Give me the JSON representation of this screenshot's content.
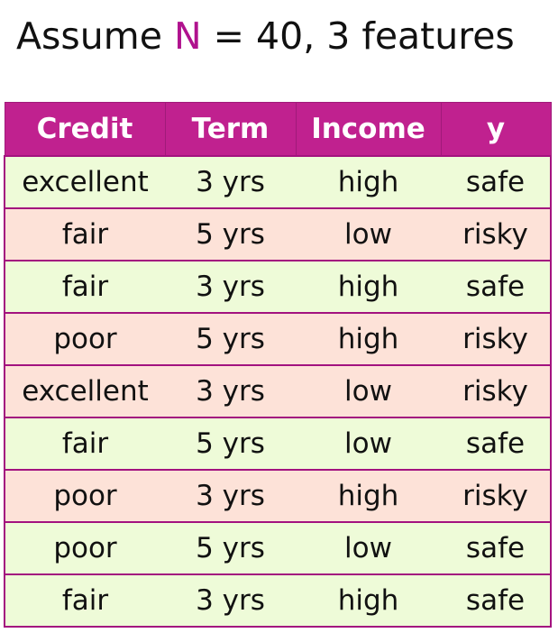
{
  "title": {
    "prefix": "Assume ",
    "highlight": "N",
    "suffix": " = 40, 3 features",
    "highlight_color": "#b0128e"
  },
  "table": {
    "header_color": "#c0218f",
    "safe_row_color": "#eefbd8",
    "risky_row_color": "#fde2d8",
    "border_color": "#a3127f",
    "columns": [
      "Credit",
      "Term",
      "Income",
      "y"
    ],
    "rows": [
      [
        "excellent",
        "3 yrs",
        "high",
        "safe"
      ],
      [
        "fair",
        "5 yrs",
        "low",
        "risky"
      ],
      [
        "fair",
        "3 yrs",
        "high",
        "safe"
      ],
      [
        "poor",
        "5 yrs",
        "high",
        "risky"
      ],
      [
        "excellent",
        "3 yrs",
        "low",
        "risky"
      ],
      [
        "fair",
        "5 yrs",
        "low",
        "safe"
      ],
      [
        "poor",
        "3 yrs",
        "high",
        "risky"
      ],
      [
        "poor",
        "5 yrs",
        "low",
        "safe"
      ],
      [
        "fair",
        "3 yrs",
        "high",
        "safe"
      ]
    ]
  }
}
